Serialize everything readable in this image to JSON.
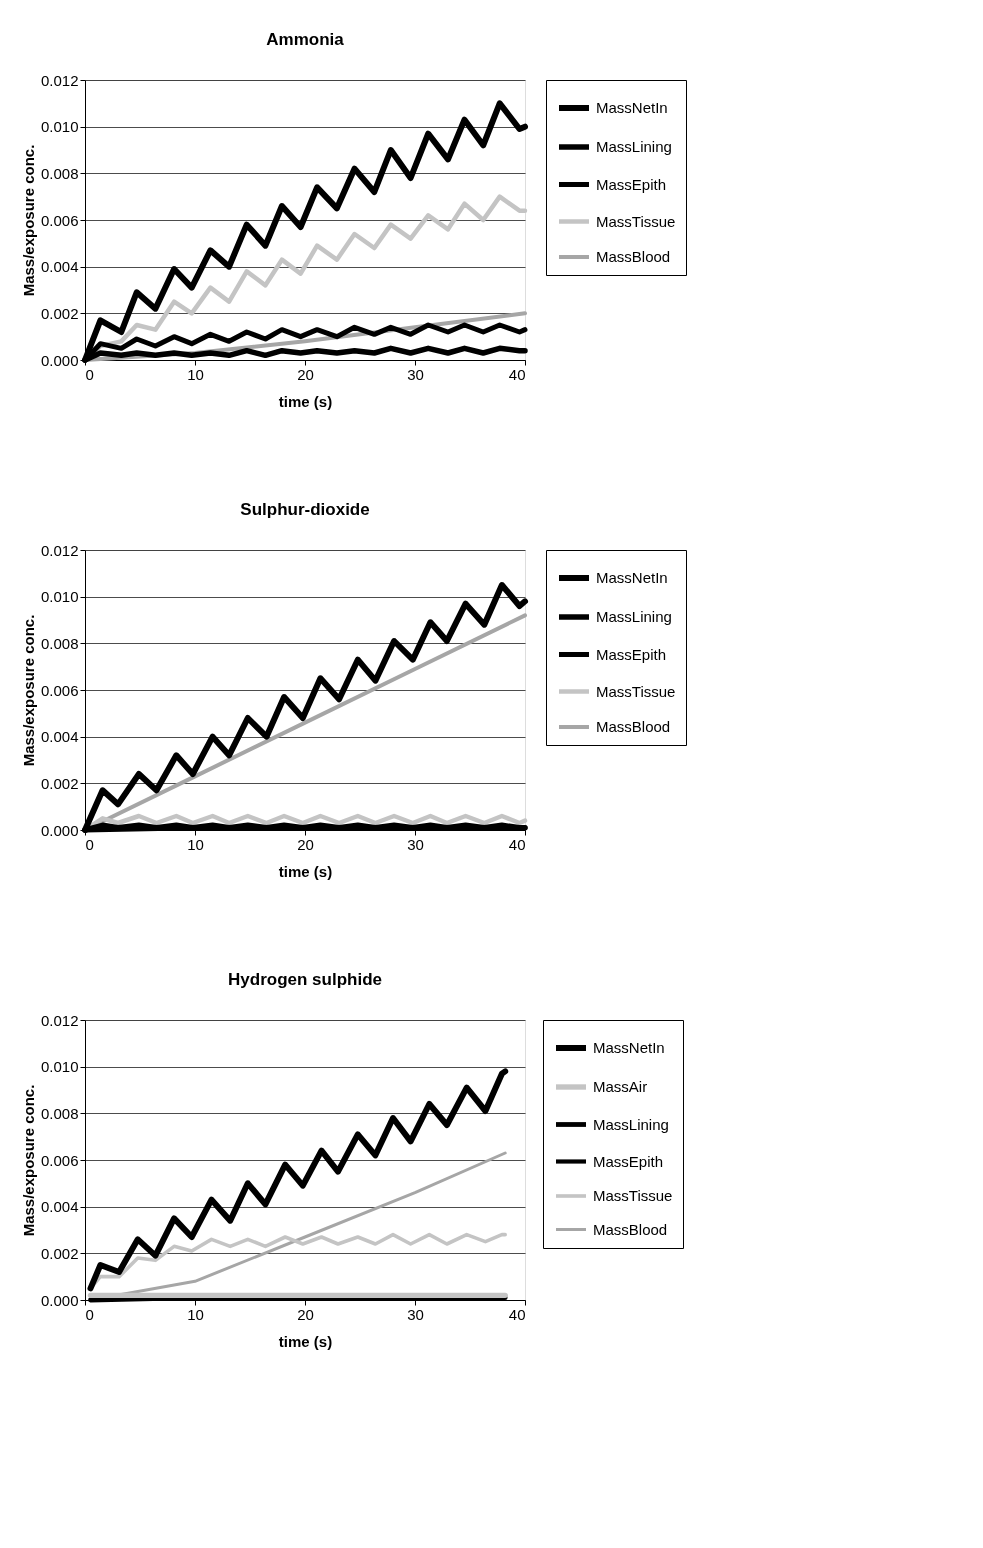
{
  "chart_data": [
    {
      "type": "line",
      "title": "Ammonia",
      "xlabel": "time (s)",
      "ylabel": "Mass/exposure conc.",
      "xlim": [
        0,
        40
      ],
      "xticks": [
        0,
        10,
        20,
        30,
        40
      ],
      "ylim": [
        0,
        0.012
      ],
      "yticks": [
        {
          "value": 0,
          "label": "0.000"
        },
        {
          "value": 0.002,
          "label": "0.002"
        },
        {
          "value": 0.004,
          "label": "0.004"
        },
        {
          "value": 0.006,
          "label": "0.006"
        },
        {
          "value": 0.008,
          "label": "0.008"
        },
        {
          "value": 0.01,
          "label": "0.010"
        },
        {
          "value": 0.012,
          "label": "0.012"
        }
      ],
      "grid": "y",
      "legend": "right",
      "x": [
        0,
        1.4,
        3.3,
        4.7,
        6.4,
        8.1,
        9.7,
        11.4,
        13.1,
        14.7,
        16.4,
        17.9,
        19.6,
        21.1,
        22.9,
        24.5,
        26.3,
        27.8,
        29.6,
        31.2,
        33.0,
        34.5,
        36.2,
        37.7,
        39.5,
        40
      ],
      "series": [
        {
          "name": "MassNetIn",
          "color": "#000000",
          "values": [
            0,
            0.0017,
            0.0012,
            0.0029,
            0.0022,
            0.0039,
            0.0031,
            0.0047,
            0.004,
            0.0058,
            0.0049,
            0.0066,
            0.0057,
            0.0074,
            0.0065,
            0.0082,
            0.0072,
            0.009,
            0.0078,
            0.0097,
            0.0086,
            0.0103,
            0.0092,
            0.011,
            0.0099,
            0.01
          ]
        },
        {
          "name": "MassLining",
          "color": "#000000",
          "values": [
            0,
            0.0003,
            0.0002,
            0.0003,
            0.0002,
            0.0003,
            0.0002,
            0.0003,
            0.0002,
            0.0004,
            0.0002,
            0.0004,
            0.0003,
            0.0004,
            0.0003,
            0.0004,
            0.0003,
            0.0005,
            0.0003,
            0.0005,
            0.0003,
            0.0005,
            0.0003,
            0.0005,
            0.0004,
            0.0004
          ]
        },
        {
          "name": "MassEpith",
          "color": "#000000",
          "values": [
            0,
            0.0007,
            0.0005,
            0.0009,
            0.0006,
            0.001,
            0.0007,
            0.0011,
            0.0008,
            0.0012,
            0.0009,
            0.0013,
            0.001,
            0.0013,
            0.001,
            0.0014,
            0.0011,
            0.0014,
            0.0011,
            0.0015,
            0.0012,
            0.0015,
            0.0012,
            0.0015,
            0.0012,
            0.0013
          ]
        },
        {
          "name": "MassTissue",
          "color": "#c4c4c4",
          "values": [
            0,
            0.0006,
            0.0008,
            0.0015,
            0.0013,
            0.0025,
            0.002,
            0.0031,
            0.0025,
            0.0038,
            0.0032,
            0.0043,
            0.0037,
            0.0049,
            0.0043,
            0.0054,
            0.0048,
            0.0058,
            0.0052,
            0.0062,
            0.0056,
            0.0067,
            0.006,
            0.007,
            0.0064,
            0.0064
          ]
        },
        {
          "name": "MassBlood",
          "color": "#a6a6a6",
          "x": [
            0,
            10,
            20,
            30,
            40
          ],
          "values": [
            0,
            0.0003,
            0.0008,
            0.0014,
            0.002
          ]
        }
      ]
    },
    {
      "type": "line",
      "title": "Sulphur-dioxide",
      "xlabel": "time (s)",
      "ylabel": "Mass/exposure conc.",
      "xlim": [
        0,
        40
      ],
      "xticks": [
        0,
        10,
        20,
        30,
        40
      ],
      "ylim": [
        0,
        0.012
      ],
      "yticks": [
        {
          "value": 0,
          "label": "0.000"
        },
        {
          "value": 0.002,
          "label": "0.002"
        },
        {
          "value": 0.004,
          "label": "0.004"
        },
        {
          "value": 0.006,
          "label": "0.006"
        },
        {
          "value": 0.008,
          "label": "0.008"
        },
        {
          "value": 0.01,
          "label": "0.010"
        },
        {
          "value": 0.012,
          "label": "0.012"
        }
      ],
      "grid": "y",
      "legend": "right",
      "x": [
        0,
        1.6,
        3.0,
        4.9,
        6.5,
        8.3,
        9.8,
        11.6,
        13.1,
        14.8,
        16.5,
        18.1,
        19.8,
        21.4,
        23.1,
        24.8,
        26.4,
        28.1,
        29.8,
        31.4,
        32.9,
        34.6,
        36.3,
        37.9,
        39.5,
        40
      ],
      "series": [
        {
          "name": "MassNetIn",
          "color": "#000000",
          "values": [
            0,
            0.0017,
            0.0011,
            0.0024,
            0.0017,
            0.0032,
            0.0024,
            0.004,
            0.0032,
            0.0048,
            0.004,
            0.0057,
            0.0048,
            0.0065,
            0.0056,
            0.0073,
            0.0064,
            0.0081,
            0.0073,
            0.0089,
            0.0081,
            0.0097,
            0.0088,
            0.0105,
            0.0096,
            0.0098
          ]
        },
        {
          "name": "MassLining",
          "color": "#000000",
          "values": [
            0,
            0.0002,
            0.0001,
            0.0002,
            0.0001,
            0.0002,
            0.0001,
            0.0002,
            0.0001,
            0.0002,
            0.0001,
            0.0002,
            0.0001,
            0.0002,
            0.0001,
            0.0002,
            0.0001,
            0.0002,
            0.0001,
            0.0002,
            0.0001,
            0.0002,
            0.0001,
            0.0002,
            0.0001,
            0.0001
          ]
        },
        {
          "name": "MassEpith",
          "color": "#000000",
          "x": [
            0,
            10,
            20,
            30,
            40
          ],
          "values": [
            0,
            0.0001,
            0.0001,
            0.0001,
            0.0001
          ]
        },
        {
          "name": "MassTissue",
          "color": "#c4c4c4",
          "values": [
            0,
            0.0005,
            0.0003,
            0.0006,
            0.0003,
            0.0006,
            0.0003,
            0.0006,
            0.0003,
            0.0006,
            0.0003,
            0.0006,
            0.0003,
            0.0006,
            0.0003,
            0.0006,
            0.0003,
            0.0006,
            0.0003,
            0.0006,
            0.0003,
            0.0006,
            0.0003,
            0.0006,
            0.0003,
            0.0004
          ]
        },
        {
          "name": "MassBlood",
          "color": "#a6a6a6",
          "x": [
            0,
            10,
            20,
            30,
            40
          ],
          "values": [
            0,
            0.0023,
            0.0046,
            0.0069,
            0.0092
          ]
        }
      ]
    },
    {
      "type": "line",
      "title": "Hydrogen sulphide",
      "xlabel": "time (s)",
      "ylabel": "Mass/exposure conc.",
      "xlim": [
        0,
        40
      ],
      "xticks": [
        0,
        10,
        20,
        30,
        40
      ],
      "ylim": [
        0,
        0.012
      ],
      "yticks": [
        {
          "value": 0,
          "label": "0.000"
        },
        {
          "value": 0.002,
          "label": "0.002"
        },
        {
          "value": 0.004,
          "label": "0.004"
        },
        {
          "value": 0.006,
          "label": "0.006"
        },
        {
          "value": 0.008,
          "label": "0.008"
        },
        {
          "value": 0.01,
          "label": "0.010"
        },
        {
          "value": 0.012,
          "label": "0.012"
        }
      ],
      "grid": "y",
      "legend": "right",
      "x": [
        0.5,
        1.4,
        3.1,
        4.8,
        6.4,
        8.1,
        9.7,
        11.5,
        13.2,
        14.8,
        16.4,
        18.2,
        19.8,
        21.5,
        23.0,
        24.8,
        26.4,
        28.0,
        29.6,
        31.3,
        32.9,
        34.7,
        36.4,
        37.9,
        38.2
      ],
      "series": [
        {
          "name": "MassNetIn",
          "color": "#000000",
          "values": [
            0.0005,
            0.0015,
            0.0012,
            0.0026,
            0.0019,
            0.0035,
            0.0027,
            0.0043,
            0.0034,
            0.005,
            0.0041,
            0.0058,
            0.0049,
            0.0064,
            0.0055,
            0.0071,
            0.0062,
            0.0078,
            0.0068,
            0.0084,
            0.0075,
            0.0091,
            0.0081,
            0.0097,
            0.0098
          ]
        },
        {
          "name": "MassAir",
          "color": "#c4c4c4",
          "x": [
            0.5,
            10,
            20,
            30,
            38.2
          ],
          "values": [
            0.0002,
            0.0002,
            0.0002,
            0.0002,
            0.0002
          ]
        },
        {
          "name": "MassLining",
          "color": "#000000",
          "x": [
            0.5,
            10,
            20,
            30,
            38.2
          ],
          "values": [
            0,
            0.0001,
            0.0001,
            0.0001,
            0.0001
          ]
        },
        {
          "name": "MassEpith",
          "color": "#000000",
          "values": [
            null,
            null,
            null,
            null,
            null,
            null,
            null,
            null,
            null,
            null,
            null,
            null,
            null,
            null,
            null,
            null,
            null,
            null,
            null,
            null,
            null,
            null,
            null,
            null,
            null
          ]
        },
        {
          "name": "MassTissue",
          "color": "#c4c4c4",
          "values": [
            0.0005,
            0.001,
            0.001,
            0.0018,
            0.0017,
            0.0023,
            0.0021,
            0.0026,
            0.0023,
            0.0026,
            0.0023,
            0.0027,
            0.0024,
            0.0027,
            0.0024,
            0.0027,
            0.0024,
            0.0028,
            0.0024,
            0.0028,
            0.0024,
            0.0028,
            0.0025,
            0.0028,
            0.0028
          ]
        },
        {
          "name": "MassBlood",
          "color": "#a6a6a6",
          "x": [
            0.5,
            10,
            20,
            30,
            38.2
          ],
          "values": [
            0,
            0.0008,
            0.0027,
            0.0046,
            0.0063
          ]
        }
      ]
    }
  ]
}
